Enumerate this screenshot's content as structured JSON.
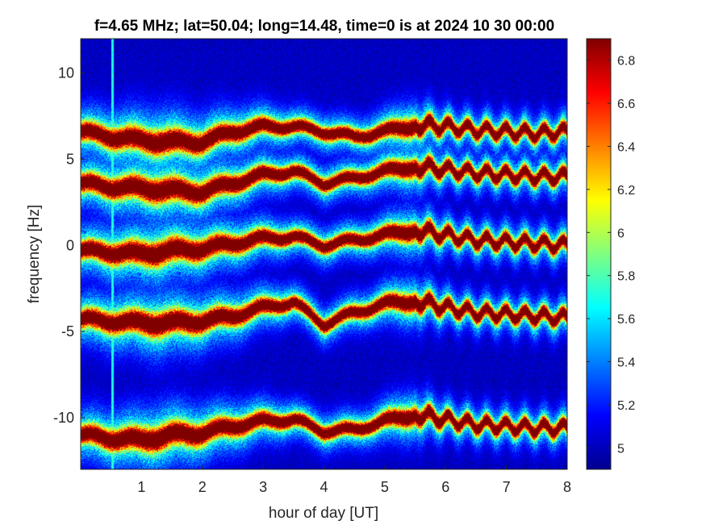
{
  "chart_data": {
    "type": "heatmap",
    "title": "f=4.65 MHz;  lat=50.04; long=14.48, time=0 is at 2024 10 30 00:00",
    "xlabel": "hour of day [UT]",
    "ylabel": "frequency [Hz]",
    "xlim": [
      0,
      8
    ],
    "ylim": [
      -13,
      12
    ],
    "x_ticks": [
      "1",
      "2",
      "3",
      "4",
      "5",
      "6",
      "7",
      "8"
    ],
    "x_tick_values": [
      1,
      2,
      3,
      4,
      5,
      6,
      7,
      8
    ],
    "y_ticks": [
      "10",
      "5",
      "0",
      "-5",
      "-10"
    ],
    "y_tick_values": [
      10,
      5,
      0,
      -5,
      -10
    ],
    "colormap": "jet",
    "background_value": 4.9,
    "colorbar": {
      "range": [
        4.9,
        6.9
      ],
      "ticks": [
        "6.8",
        "6.6",
        "6.4",
        "6.2",
        "6",
        "5.8",
        "5.6",
        "5.4",
        "5.2",
        "5"
      ],
      "tick_values": [
        6.8,
        6.6,
        6.4,
        6.2,
        6.0,
        5.8,
        5.6,
        5.4,
        5.2,
        5.0
      ]
    },
    "vertical_stripe_x": 0.53,
    "bands": [
      {
        "name": "band +6.5 Hz",
        "hours": [
          0,
          0.5,
          1,
          1.5,
          2,
          2.5,
          3,
          3.5,
          4,
          4.5,
          5,
          5.5,
          6,
          6.5,
          7,
          7.5,
          8
        ],
        "center_hz": [
          6.6,
          6.3,
          6.1,
          6.0,
          6.0,
          6.6,
          6.9,
          6.9,
          6.6,
          6.3,
          6.6,
          7.0,
          6.9,
          6.7,
          6.6,
          6.5,
          6.6
        ]
      },
      {
        "name": "band +3.5 Hz",
        "hours": [
          0,
          0.5,
          1,
          1.5,
          2,
          2.5,
          3,
          3.5,
          4,
          4.5,
          5,
          5.5,
          6,
          6.5,
          7,
          7.5,
          8
        ],
        "center_hz": [
          3.6,
          3.4,
          3.3,
          3.2,
          3.1,
          3.6,
          4.1,
          4.3,
          3.6,
          3.9,
          4.3,
          4.6,
          4.4,
          4.2,
          4.1,
          4.0,
          4.0
        ]
      },
      {
        "name": "band 0 Hz",
        "hours": [
          0,
          0.5,
          1,
          1.5,
          2,
          2.5,
          3,
          3.5,
          4,
          4.5,
          5,
          5.5,
          6,
          6.5,
          7,
          7.5,
          8
        ],
        "center_hz": [
          -0.3,
          -0.4,
          -0.5,
          -0.3,
          -0.2,
          0.1,
          0.4,
          0.5,
          0.0,
          0.3,
          0.6,
          0.9,
          0.6,
          0.3,
          0.2,
          0.1,
          0.0
        ]
      },
      {
        "name": "band -4.5 Hz",
        "hours": [
          0,
          0.5,
          1,
          1.5,
          2,
          2.5,
          3,
          3.5,
          4,
          4.5,
          5,
          5.5,
          6,
          6.5,
          7,
          7.5,
          8
        ],
        "center_hz": [
          -4.3,
          -4.4,
          -4.5,
          -4.5,
          -4.4,
          -4.1,
          -3.6,
          -3.3,
          -4.6,
          -3.9,
          -3.4,
          -3.2,
          -3.6,
          -3.9,
          -4.0,
          -4.1,
          -4.2
        ]
      },
      {
        "name": "band -11 Hz",
        "hours": [
          0,
          0.5,
          1,
          1.5,
          2,
          2.5,
          3,
          3.5,
          4,
          4.5,
          5,
          5.5,
          6,
          6.5,
          7,
          7.5,
          8
        ],
        "center_hz": [
          -11.0,
          -11.2,
          -11.3,
          -11.0,
          -10.9,
          -10.5,
          -10.2,
          -10.1,
          -10.8,
          -10.7,
          -10.2,
          -9.8,
          -10.1,
          -10.4,
          -10.5,
          -10.6,
          -10.6
        ]
      }
    ]
  }
}
